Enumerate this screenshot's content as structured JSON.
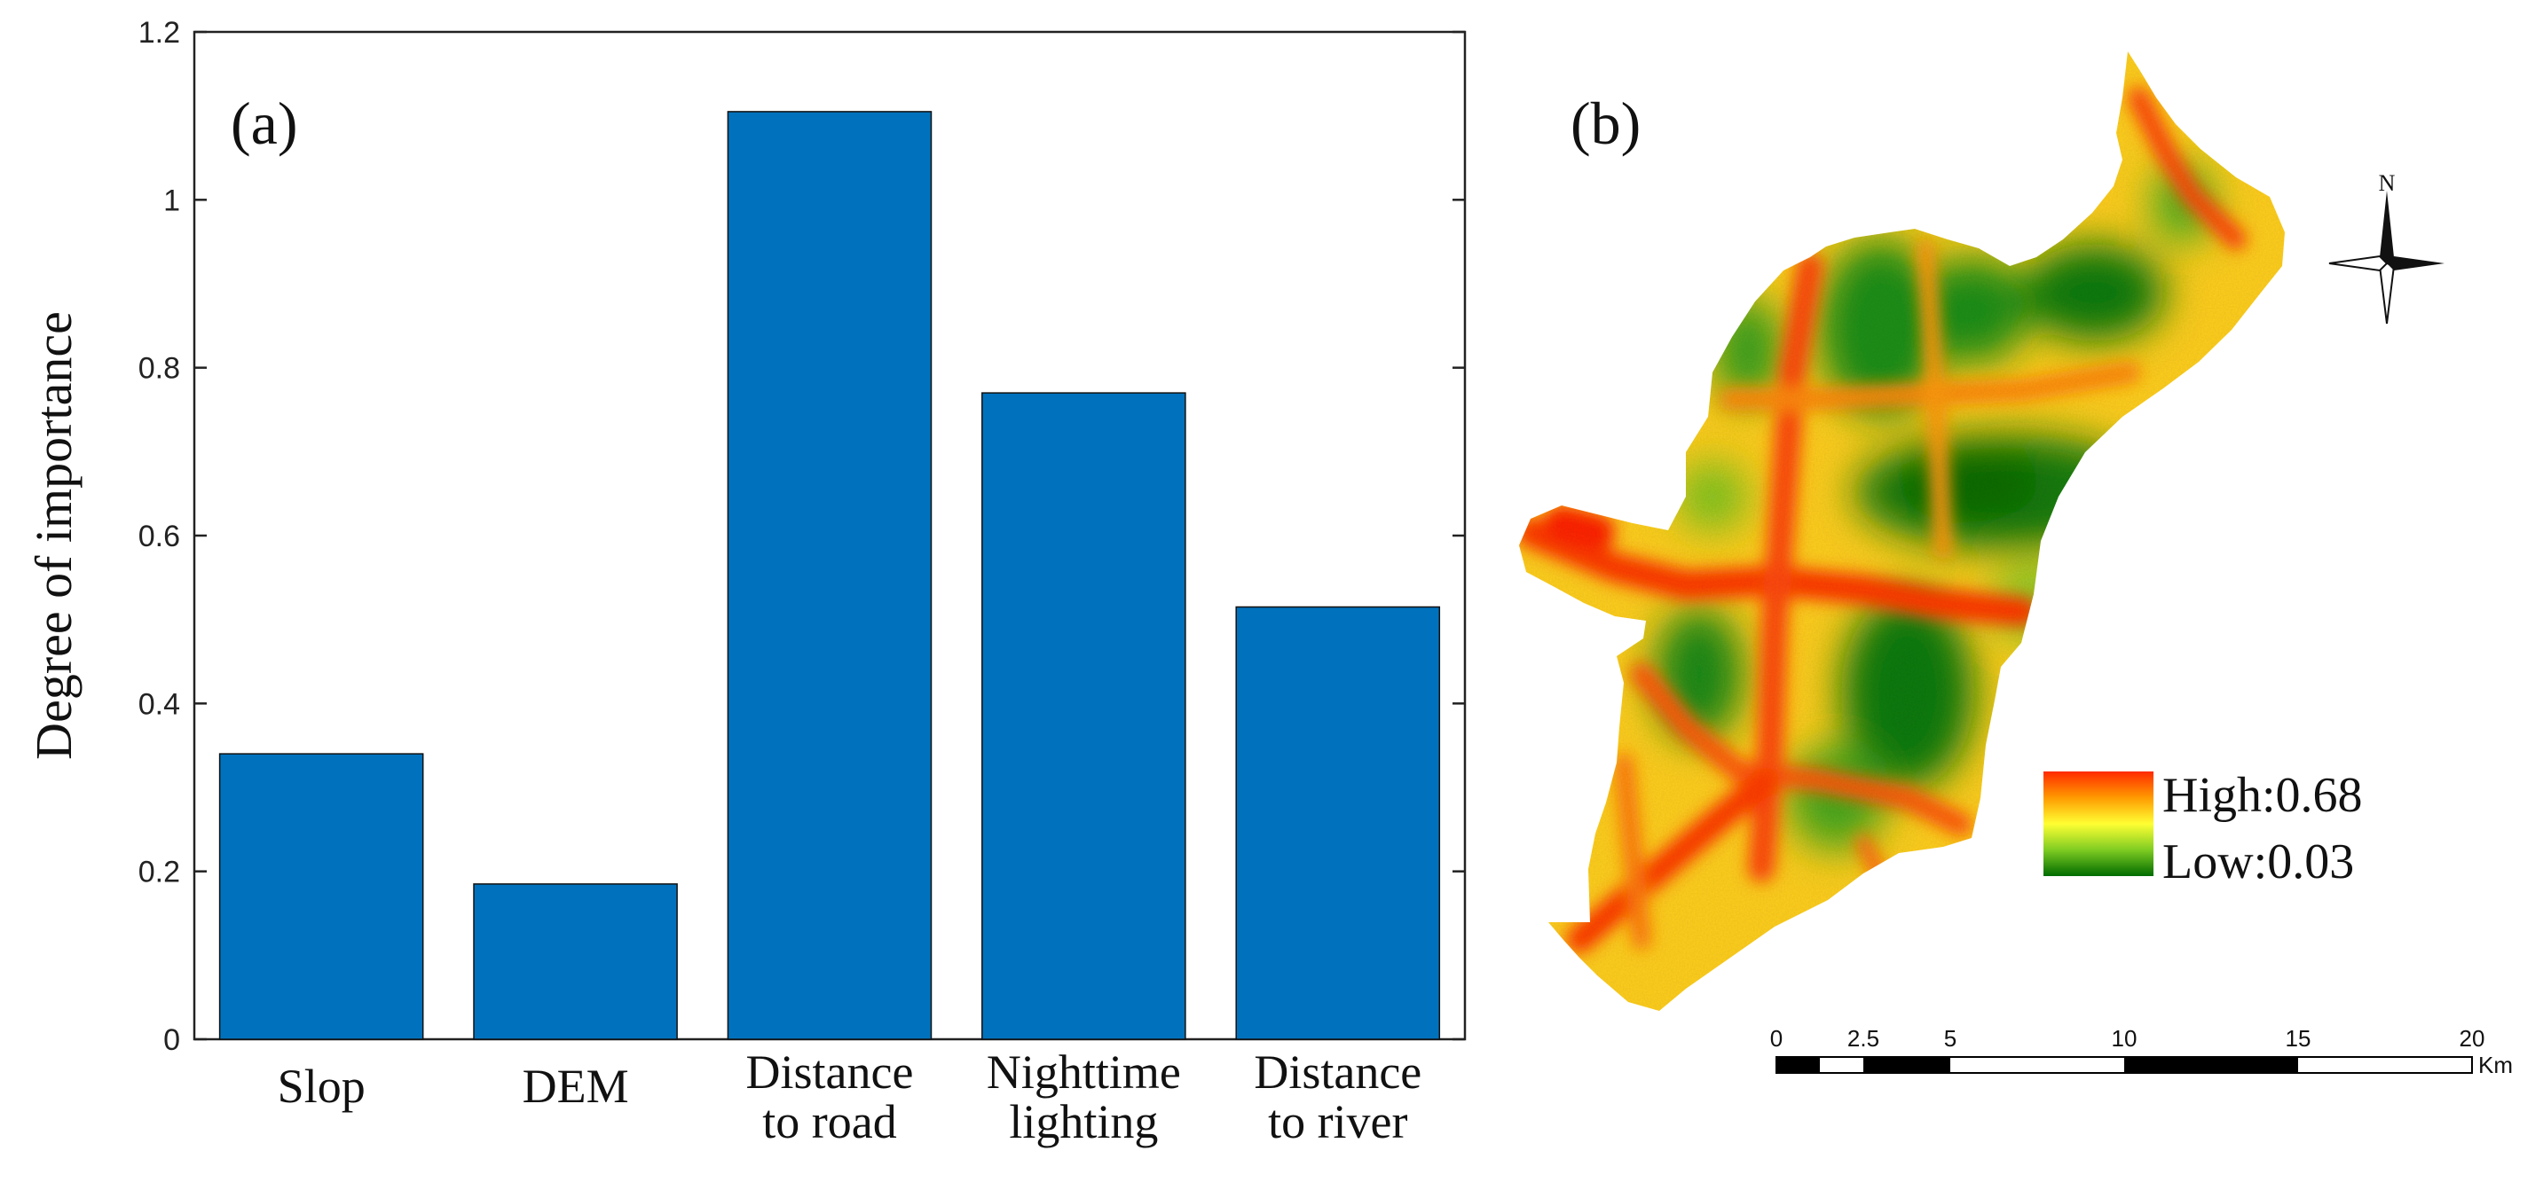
{
  "chart_data": [
    {
      "type": "bar",
      "panel_label": "(a)",
      "categories": [
        [
          "Slop"
        ],
        [
          "DEM"
        ],
        [
          "Distance",
          "to road"
        ],
        [
          "Nighttime",
          "lighting"
        ],
        [
          "Distance",
          "to river"
        ]
      ],
      "values": [
        0.34,
        0.185,
        1.105,
        0.77,
        0.515
      ],
      "ylabel": "Degree of importance",
      "xlabel": "",
      "ylim": [
        0,
        1.2
      ],
      "yticks": [
        0,
        0.2,
        0.4,
        0.6,
        0.8,
        1,
        1.2
      ],
      "ytick_labels": [
        "0",
        "0.2",
        "0.4",
        "0.6",
        "0.8",
        "1",
        "1.2"
      ],
      "grid": false,
      "bar_color": "#0072BD"
    },
    {
      "type": "heatmap",
      "panel_label": "(b)",
      "legend": {
        "high_label": "High:0.68",
        "low_label": "Low:0.03",
        "high_value": 0.68,
        "low_value": 0.03,
        "colors": [
          "#ff2a00",
          "#ff9a00",
          "#ffff33",
          "#7fcc22",
          "#006b00"
        ]
      },
      "north_label": "N",
      "scale_bar": {
        "ticks": [
          0,
          2.5,
          5,
          10,
          15,
          20
        ],
        "tick_labels": [
          "0",
          "2.5",
          "5",
          "10",
          "15",
          "20"
        ],
        "unit": "Km"
      }
    }
  ]
}
